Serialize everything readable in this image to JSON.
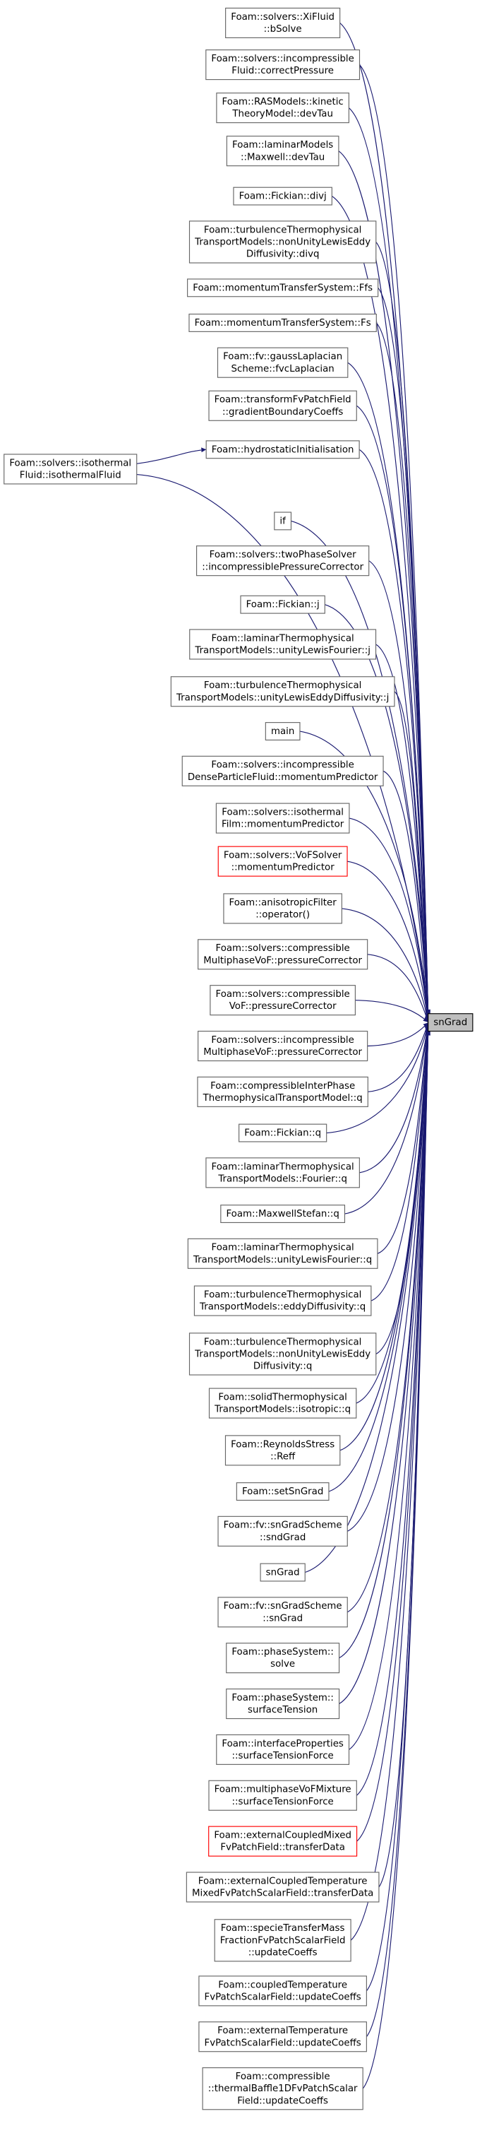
{
  "graph": {
    "target": {
      "lines": [
        "snGrad"
      ]
    },
    "source": {
      "lines": [
        "Foam::solvers::isothermal",
        "Fluid::isothermalFluid"
      ]
    },
    "nodes": [
      {
        "lines": [
          "Foam::solvers::XiFluid",
          "::bSolve"
        ]
      },
      {
        "lines": [
          "Foam::solvers::incompressible",
          "Fluid::correctPressure"
        ]
      },
      {
        "lines": [
          "Foam::RASModels::kinetic",
          "TheoryModel::devTau"
        ]
      },
      {
        "lines": [
          "Foam::laminarModels",
          "::Maxwell::devTau"
        ]
      },
      {
        "lines": [
          "Foam::Fickian::divj"
        ]
      },
      {
        "lines": [
          "Foam::turbulenceThermophysical",
          "TransportModels::nonUnityLewisEddy",
          "Diffusivity::divq"
        ]
      },
      {
        "lines": [
          "Foam::momentumTransferSystem::Ffs"
        ]
      },
      {
        "lines": [
          "Foam::momentumTransferSystem::Fs"
        ]
      },
      {
        "lines": [
          "Foam::fv::gaussLaplacian",
          "Scheme::fvcLaplacian"
        ]
      },
      {
        "lines": [
          "Foam::transformFvPatchField",
          "::gradientBoundaryCoeffs"
        ]
      },
      {
        "lines": [
          "Foam::hydrostaticInitialisation"
        ]
      },
      {
        "lines": [
          "if"
        ]
      },
      {
        "lines": [
          "Foam::solvers::twoPhaseSolver",
          "::incompressiblePressureCorrector"
        ]
      },
      {
        "lines": [
          "Foam::Fickian::j"
        ]
      },
      {
        "lines": [
          "Foam::laminarThermophysical",
          "TransportModels::unityLewisFourier::j"
        ]
      },
      {
        "lines": [
          "Foam::turbulenceThermophysical",
          "TransportModels::unityLewisEddyDiffusivity::j"
        ]
      },
      {
        "lines": [
          "main"
        ]
      },
      {
        "lines": [
          "Foam::solvers::incompressible",
          "DenseParticleFluid::momentumPredictor"
        ]
      },
      {
        "lines": [
          "Foam::solvers::isothermal",
          "Film::momentumPredictor"
        ]
      },
      {
        "lines": [
          "Foam::solvers::VoFSolver",
          "::momentumPredictor"
        ],
        "border_color": "red"
      },
      {
        "lines": [
          "Foam::anisotropicFilter",
          "::operator()"
        ]
      },
      {
        "lines": [
          "Foam::solvers::compressible",
          "MultiphaseVoF::pressureCorrector"
        ]
      },
      {
        "lines": [
          "Foam::solvers::compressible",
          "VoF::pressureCorrector"
        ]
      },
      {
        "lines": [
          "Foam::solvers::incompressible",
          "MultiphaseVoF::pressureCorrector"
        ]
      },
      {
        "lines": [
          "Foam::compressibleInterPhase",
          "ThermophysicalTransportModel::q"
        ]
      },
      {
        "lines": [
          "Foam::Fickian::q"
        ]
      },
      {
        "lines": [
          "Foam::laminarThermophysical",
          "TransportModels::Fourier::q"
        ]
      },
      {
        "lines": [
          "Foam::MaxwellStefan::q"
        ]
      },
      {
        "lines": [
          "Foam::laminarThermophysical",
          "TransportModels::unityLewisFourier::q"
        ]
      },
      {
        "lines": [
          "Foam::turbulenceThermophysical",
          "TransportModels::eddyDiffusivity::q"
        ]
      },
      {
        "lines": [
          "Foam::turbulenceThermophysical",
          "TransportModels::nonUnityLewisEddy",
          "Diffusivity::q"
        ]
      },
      {
        "lines": [
          "Foam::solidThermophysical",
          "TransportModels::isotropic::q"
        ]
      },
      {
        "lines": [
          "Foam::ReynoldsStress",
          "::Reff"
        ]
      },
      {
        "lines": [
          "Foam::setSnGrad"
        ]
      },
      {
        "lines": [
          "Foam::fv::snGradScheme",
          "::sndGrad"
        ]
      },
      {
        "lines": [
          "snGrad"
        ]
      },
      {
        "lines": [
          "Foam::fv::snGradScheme",
          "::snGrad"
        ]
      },
      {
        "lines": [
          "Foam::phaseSystem::",
          "solve"
        ]
      },
      {
        "lines": [
          "Foam::phaseSystem::",
          "surfaceTension"
        ]
      },
      {
        "lines": [
          "Foam::interfaceProperties",
          "::surfaceTensionForce"
        ]
      },
      {
        "lines": [
          "Foam::multiphaseVoFMixture",
          "::surfaceTensionForce"
        ]
      },
      {
        "lines": [
          "Foam::externalCoupledMixed",
          "FvPatchField::transferData"
        ],
        "border_color": "red"
      },
      {
        "lines": [
          "Foam::externalCoupledTemperature",
          "MixedFvPatchScalarField::transferData"
        ]
      },
      {
        "lines": [
          "Foam::specieTransferMass",
          "FractionFvPatchScalarField",
          "::updateCoeffs"
        ]
      },
      {
        "lines": [
          "Foam::coupledTemperature",
          "FvPatchScalarField::updateCoeffs"
        ]
      },
      {
        "lines": [
          "Foam::externalTemperature",
          "FvPatchScalarField::updateCoeffs"
        ]
      },
      {
        "lines": [
          "Foam::compressible",
          "::thermalBaffle1DFvPatchScalar",
          "Field::updateCoeffs"
        ]
      }
    ]
  }
}
